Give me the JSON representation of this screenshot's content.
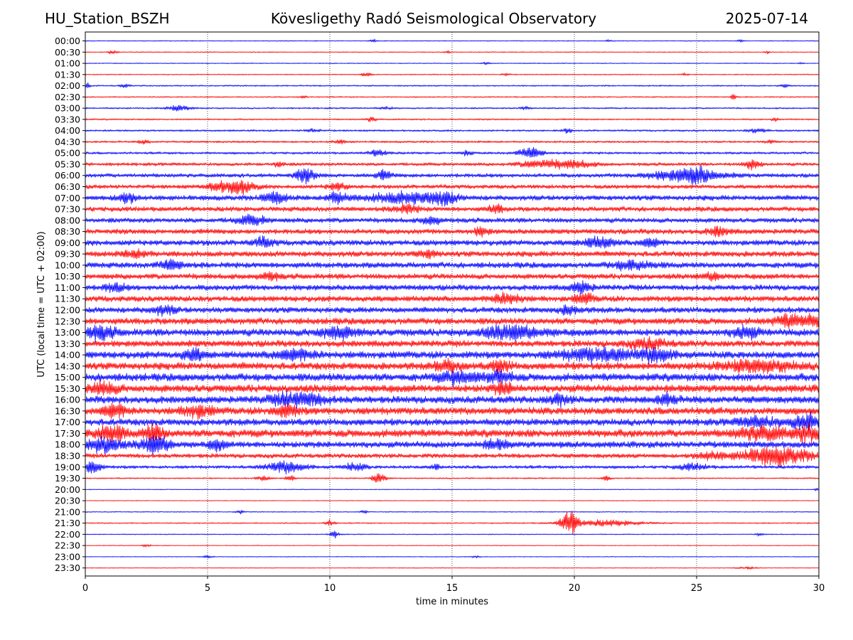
{
  "header": {
    "station": "HU_Station_BSZH",
    "observatory": "Kövesligethy Radó Seismological Observatory",
    "date": "2025-07-14"
  },
  "chart_data": {
    "type": "line",
    "title": "Kövesligethy Radó Seismological Observatory",
    "xlabel": "time in minutes",
    "ylabel": "UTC (local time = UTC + 02:00)",
    "xlim": [
      0,
      30
    ],
    "xticks": [
      0,
      5,
      10,
      15,
      20,
      25,
      30
    ],
    "grid": "vertical dotted lines at 5-minute intervals",
    "trace_colors": [
      "#0000ff",
      "#ff0000"
    ],
    "rows": [
      {
        "label": "00:00",
        "amp": 0.6,
        "events": [
          {
            "t": 11.8,
            "a": 2.0,
            "w": 0.15
          },
          {
            "t": 21.4,
            "a": 1.6,
            "w": 0.12
          },
          {
            "t": 26.8,
            "a": 1.4,
            "w": 0.12
          }
        ]
      },
      {
        "label": "00:30",
        "amp": 0.6,
        "events": [
          {
            "t": 1.1,
            "a": 2.0,
            "w": 0.2
          },
          {
            "t": 14.8,
            "a": 1.5,
            "w": 0.12
          },
          {
            "t": 27.9,
            "a": 1.5,
            "w": 0.12
          }
        ]
      },
      {
        "label": "01:00",
        "amp": 0.6,
        "events": [
          {
            "t": 16.4,
            "a": 1.5,
            "w": 0.15
          },
          {
            "t": 29.3,
            "a": 1.5,
            "w": 0.12
          }
        ]
      },
      {
        "label": "01:30",
        "amp": 0.7,
        "events": [
          {
            "t": 11.5,
            "a": 2.2,
            "w": 0.2
          },
          {
            "t": 17.2,
            "a": 1.8,
            "w": 0.15
          },
          {
            "t": 24.5,
            "a": 1.6,
            "w": 0.15
          }
        ]
      },
      {
        "label": "02:00",
        "amp": 0.9,
        "events": [
          {
            "t": 0.1,
            "a": 3.0,
            "w": 0.1
          },
          {
            "t": 1.6,
            "a": 2.0,
            "w": 0.2
          },
          {
            "t": 28.6,
            "a": 2.5,
            "w": 0.15
          }
        ]
      },
      {
        "label": "02:30",
        "amp": 0.8,
        "events": [
          {
            "t": 8.9,
            "a": 2.0,
            "w": 0.15
          },
          {
            "t": 26.5,
            "a": 4.5,
            "w": 0.12
          }
        ]
      },
      {
        "label": "03:00",
        "amp": 1.0,
        "events": [
          {
            "t": 3.8,
            "a": 3.0,
            "w": 0.5
          },
          {
            "t": 12.3,
            "a": 1.6,
            "w": 0.3
          },
          {
            "t": 18.0,
            "a": 2.2,
            "w": 0.2
          }
        ]
      },
      {
        "label": "03:30",
        "amp": 1.0,
        "events": [
          {
            "t": 11.7,
            "a": 3.0,
            "w": 0.2
          },
          {
            "t": 28.2,
            "a": 2.5,
            "w": 0.12
          }
        ]
      },
      {
        "label": "04:00",
        "amp": 1.2,
        "events": [
          {
            "t": 9.3,
            "a": 2.0,
            "w": 0.3
          },
          {
            "t": 19.7,
            "a": 2.5,
            "w": 0.2
          },
          {
            "t": 27.5,
            "a": 2.5,
            "w": 0.4
          }
        ]
      },
      {
        "label": "04:30",
        "amp": 1.3,
        "events": [
          {
            "t": 2.4,
            "a": 2.5,
            "w": 0.2
          },
          {
            "t": 10.4,
            "a": 2.0,
            "w": 0.3
          },
          {
            "t": 28.0,
            "a": 2.0,
            "w": 0.2
          }
        ]
      },
      {
        "label": "05:00",
        "amp": 1.5,
        "events": [
          {
            "t": 12.0,
            "a": 3.5,
            "w": 0.4
          },
          {
            "t": 15.6,
            "a": 3.0,
            "w": 0.2
          },
          {
            "t": 18.2,
            "a": 6.5,
            "w": 0.5
          }
        ]
      },
      {
        "label": "05:30",
        "amp": 2.0,
        "events": [
          {
            "t": 7.9,
            "a": 3.5,
            "w": 0.2
          },
          {
            "t": 18.6,
            "a": 4.5,
            "w": 0.8
          },
          {
            "t": 20.0,
            "a": 4.0,
            "w": 0.8
          },
          {
            "t": 27.3,
            "a": 6.5,
            "w": 0.3
          }
        ]
      },
      {
        "label": "06:00",
        "amp": 2.5,
        "events": [
          {
            "t": 9.0,
            "a": 8.0,
            "w": 0.4
          },
          {
            "t": 12.2,
            "a": 5.0,
            "w": 0.3
          },
          {
            "t": 24.5,
            "a": 6.0,
            "w": 1.5
          },
          {
            "t": 25.0,
            "a": 6.0,
            "w": 0.5
          }
        ]
      },
      {
        "label": "06:30",
        "amp": 2.5,
        "events": [
          {
            "t": 5.4,
            "a": 4.5,
            "w": 0.4
          },
          {
            "t": 6.3,
            "a": 8.0,
            "w": 0.6
          },
          {
            "t": 10.3,
            "a": 4.0,
            "w": 0.4
          }
        ]
      },
      {
        "label": "07:00",
        "amp": 3.2,
        "events": [
          {
            "t": 1.7,
            "a": 6.0,
            "w": 0.4
          },
          {
            "t": 7.7,
            "a": 6.5,
            "w": 0.5
          },
          {
            "t": 10.3,
            "a": 7.0,
            "w": 0.4
          },
          {
            "t": 13.2,
            "a": 6.0,
            "w": 1.5
          },
          {
            "t": 14.7,
            "a": 7.0,
            "w": 0.4
          }
        ]
      },
      {
        "label": "07:30",
        "amp": 3.0,
        "events": [
          {
            "t": 13.1,
            "a": 4.5,
            "w": 0.5
          },
          {
            "t": 16.8,
            "a": 4.5,
            "w": 0.3
          }
        ]
      },
      {
        "label": "08:00",
        "amp": 3.0,
        "events": [
          {
            "t": 6.8,
            "a": 5.0,
            "w": 0.6
          },
          {
            "t": 14.2,
            "a": 4.5,
            "w": 0.4
          }
        ]
      },
      {
        "label": "08:30",
        "amp": 3.2,
        "events": [
          {
            "t": 16.2,
            "a": 4.5,
            "w": 0.3
          },
          {
            "t": 25.9,
            "a": 5.0,
            "w": 0.4
          }
        ]
      },
      {
        "label": "09:00",
        "amp": 3.5,
        "events": [
          {
            "t": 7.3,
            "a": 5.0,
            "w": 0.4
          },
          {
            "t": 21.0,
            "a": 5.5,
            "w": 0.6
          },
          {
            "t": 23.1,
            "a": 5.0,
            "w": 0.4
          }
        ]
      },
      {
        "label": "09:30",
        "amp": 3.5,
        "events": [
          {
            "t": 2.1,
            "a": 4.0,
            "w": 0.5
          },
          {
            "t": 14.0,
            "a": 4.0,
            "w": 0.4
          }
        ]
      },
      {
        "label": "10:00",
        "amp": 3.6,
        "events": [
          {
            "t": 3.5,
            "a": 5.0,
            "w": 0.5
          },
          {
            "t": 22.4,
            "a": 5.0,
            "w": 0.8
          }
        ]
      },
      {
        "label": "10:30",
        "amp": 3.4,
        "events": [
          {
            "t": 7.5,
            "a": 4.5,
            "w": 0.4
          },
          {
            "t": 25.7,
            "a": 4.5,
            "w": 0.4
          }
        ]
      },
      {
        "label": "11:00",
        "amp": 3.5,
        "events": [
          {
            "t": 1.2,
            "a": 5.0,
            "w": 0.4
          },
          {
            "t": 20.3,
            "a": 6.0,
            "w": 0.4
          }
        ]
      },
      {
        "label": "11:30",
        "amp": 3.6,
        "events": [
          {
            "t": 17.2,
            "a": 6.0,
            "w": 0.6
          },
          {
            "t": 20.4,
            "a": 5.5,
            "w": 0.4
          }
        ]
      },
      {
        "label": "12:00",
        "amp": 3.6,
        "events": [
          {
            "t": 3.2,
            "a": 4.5,
            "w": 0.5
          },
          {
            "t": 19.8,
            "a": 4.5,
            "w": 0.4
          }
        ]
      },
      {
        "label": "12:30",
        "amp": 4.0,
        "events": [
          {
            "t": 28.8,
            "a": 6.5,
            "w": 0.6
          },
          {
            "t": 29.8,
            "a": 7.5,
            "w": 0.4
          }
        ]
      },
      {
        "label": "13:00",
        "amp": 4.5,
        "events": [
          {
            "t": 0.6,
            "a": 7.0,
            "w": 0.6
          },
          {
            "t": 10.3,
            "a": 6.0,
            "w": 0.8
          },
          {
            "t": 17.5,
            "a": 7.5,
            "w": 1.2
          },
          {
            "t": 27.0,
            "a": 7.0,
            "w": 0.5
          }
        ]
      },
      {
        "label": "13:30",
        "amp": 4.0,
        "events": [
          {
            "t": 23.0,
            "a": 5.0,
            "w": 0.8
          }
        ]
      },
      {
        "label": "14:00",
        "amp": 4.5,
        "events": [
          {
            "t": 4.4,
            "a": 6.5,
            "w": 0.4
          },
          {
            "t": 8.6,
            "a": 6.0,
            "w": 0.8
          },
          {
            "t": 21.0,
            "a": 7.0,
            "w": 1.5
          },
          {
            "t": 23.4,
            "a": 7.5,
            "w": 0.6
          }
        ]
      },
      {
        "label": "14:30",
        "amp": 4.5,
        "events": [
          {
            "t": 14.8,
            "a": 6.0,
            "w": 0.5
          },
          {
            "t": 17.0,
            "a": 6.0,
            "w": 0.4
          },
          {
            "t": 27.5,
            "a": 6.0,
            "w": 1.5
          }
        ]
      },
      {
        "label": "15:00",
        "amp": 4.8,
        "events": [
          {
            "t": 15.3,
            "a": 6.5,
            "w": 0.8
          },
          {
            "t": 17.0,
            "a": 6.0,
            "w": 0.5
          }
        ]
      },
      {
        "label": "15:30",
        "amp": 4.8,
        "events": [
          {
            "t": 0.7,
            "a": 6.5,
            "w": 0.6
          },
          {
            "t": 17.1,
            "a": 6.0,
            "w": 0.4
          }
        ]
      },
      {
        "label": "16:00",
        "amp": 4.5,
        "events": [
          {
            "t": 8.7,
            "a": 8.5,
            "w": 1.0
          },
          {
            "t": 19.4,
            "a": 5.5,
            "w": 0.4
          },
          {
            "t": 23.8,
            "a": 6.0,
            "w": 0.4
          }
        ]
      },
      {
        "label": "16:30",
        "amp": 4.5,
        "events": [
          {
            "t": 1.2,
            "a": 8.0,
            "w": 0.5
          },
          {
            "t": 4.6,
            "a": 6.5,
            "w": 0.6
          },
          {
            "t": 8.2,
            "a": 6.0,
            "w": 0.5
          }
        ]
      },
      {
        "label": "17:00",
        "amp": 4.2,
        "events": [
          {
            "t": 29.5,
            "a": 8.5,
            "w": 0.6
          },
          {
            "t": 27.5,
            "a": 5.5,
            "w": 0.8
          }
        ]
      },
      {
        "label": "17:30",
        "amp": 4.8,
        "events": [
          {
            "t": 1.0,
            "a": 9.0,
            "w": 0.6
          },
          {
            "t": 2.8,
            "a": 9.0,
            "w": 0.4
          },
          {
            "t": 27.7,
            "a": 7.5,
            "w": 1.0
          },
          {
            "t": 29.6,
            "a": 9.0,
            "w": 0.5
          }
        ]
      },
      {
        "label": "18:00",
        "amp": 4.0,
        "events": [
          {
            "t": 0.8,
            "a": 9.5,
            "w": 0.6
          },
          {
            "t": 2.9,
            "a": 10.0,
            "w": 0.6
          },
          {
            "t": 5.4,
            "a": 6.0,
            "w": 0.3
          },
          {
            "t": 16.8,
            "a": 5.0,
            "w": 0.5
          }
        ]
      },
      {
        "label": "18:30",
        "amp": 2.8,
        "events": [
          {
            "t": 28.2,
            "a": 11.0,
            "w": 1.4
          },
          {
            "t": 25.5,
            "a": 4.0,
            "w": 0.6
          }
        ]
      },
      {
        "label": "19:00",
        "amp": 2.0,
        "events": [
          {
            "t": 0.3,
            "a": 9.0,
            "w": 0.3
          },
          {
            "t": 8.2,
            "a": 6.5,
            "w": 0.8
          },
          {
            "t": 11.0,
            "a": 4.0,
            "w": 0.5
          },
          {
            "t": 14.3,
            "a": 3.5,
            "w": 0.2
          },
          {
            "t": 24.8,
            "a": 3.5,
            "w": 0.6
          }
        ]
      },
      {
        "label": "19:30",
        "amp": 0.9,
        "events": [
          {
            "t": 7.3,
            "a": 3.0,
            "w": 0.3
          },
          {
            "t": 8.4,
            "a": 4.0,
            "w": 0.2
          },
          {
            "t": 12.0,
            "a": 5.5,
            "w": 0.3
          },
          {
            "t": 21.3,
            "a": 4.0,
            "w": 0.15
          }
        ]
      },
      {
        "label": "20:00",
        "amp": 0.5,
        "events": [
          {
            "t": 29.9,
            "a": 2.0,
            "w": 0.1
          }
        ]
      },
      {
        "label": "20:30",
        "amp": 0.5,
        "events": []
      },
      {
        "label": "21:00",
        "amp": 0.6,
        "events": [
          {
            "t": 6.3,
            "a": 3.0,
            "w": 0.15
          },
          {
            "t": 11.4,
            "a": 2.5,
            "w": 0.15
          }
        ]
      },
      {
        "label": "21:30",
        "amp": 0.8,
        "events": [
          {
            "t": 10.0,
            "a": 3.5,
            "w": 0.2
          },
          {
            "t": 19.8,
            "a": 14.0,
            "w": 0.35
          },
          {
            "t": 21.2,
            "a": 3.5,
            "w": 1.6
          }
        ]
      },
      {
        "label": "22:00",
        "amp": 0.6,
        "events": [
          {
            "t": 10.2,
            "a": 4.0,
            "w": 0.2
          },
          {
            "t": 27.6,
            "a": 2.0,
            "w": 0.15
          }
        ]
      },
      {
        "label": "22:30",
        "amp": 0.5,
        "events": [
          {
            "t": 2.5,
            "a": 1.5,
            "w": 0.2
          }
        ]
      },
      {
        "label": "23:00",
        "amp": 0.5,
        "events": [
          {
            "t": 5.0,
            "a": 1.5,
            "w": 0.2
          },
          {
            "t": 16.0,
            "a": 1.2,
            "w": 0.2
          }
        ]
      },
      {
        "label": "23:30",
        "amp": 0.5,
        "events": [
          {
            "t": 27.1,
            "a": 1.5,
            "w": 0.4
          }
        ]
      }
    ]
  }
}
